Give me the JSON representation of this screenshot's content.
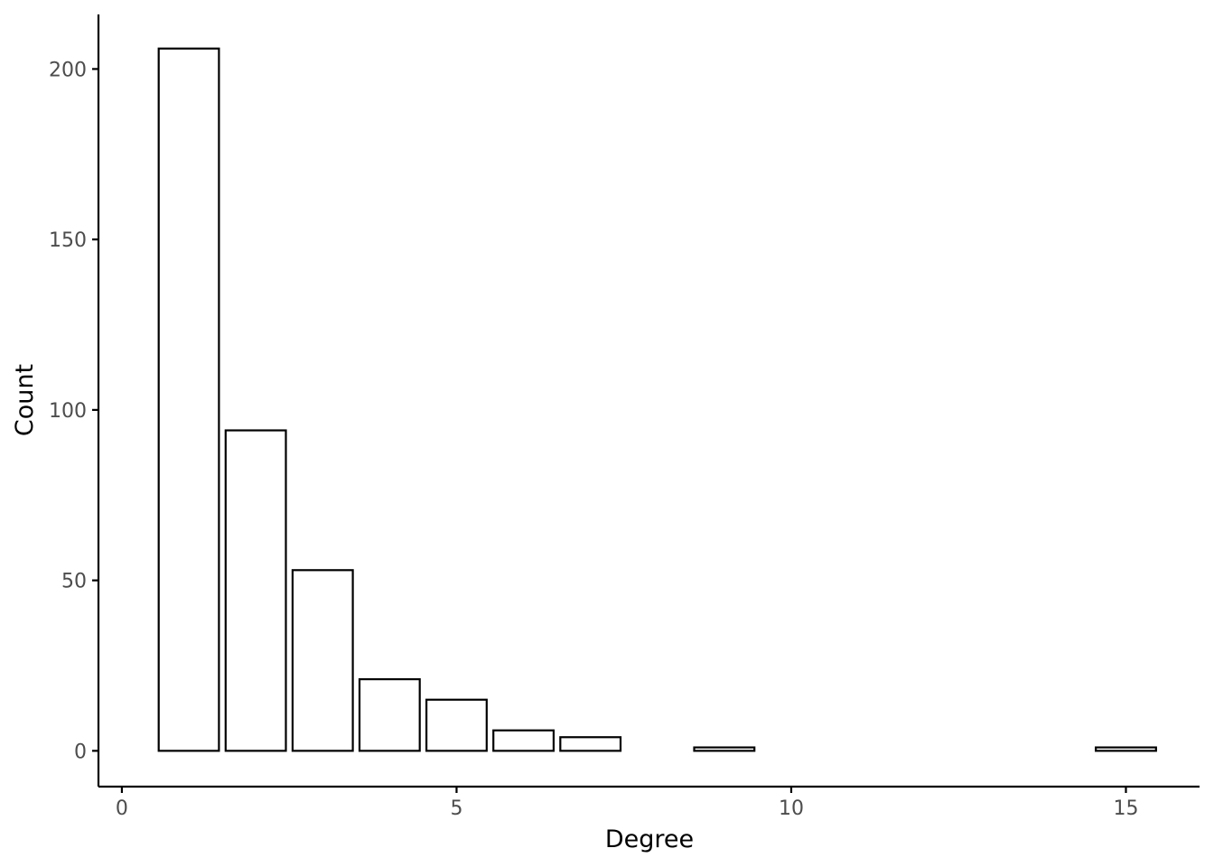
{
  "chart_data": {
    "type": "bar",
    "xlabel": "Degree",
    "ylabel": "Count",
    "x": [
      1,
      2,
      3,
      4,
      5,
      6,
      7,
      9,
      15
    ],
    "values": [
      206,
      94,
      53,
      21,
      15,
      6,
      4,
      1,
      1
    ],
    "xlim": [
      -0.35,
      16.1
    ],
    "ylim": [
      -10.5,
      216
    ],
    "x_ticks": [
      0,
      5,
      10,
      15
    ],
    "y_ticks": [
      0,
      50,
      100,
      150,
      200
    ],
    "bar_width": 0.9,
    "grid": false,
    "legend": "none",
    "colors": {
      "bar_fill": "#ffffff",
      "bar_stroke": "#000000",
      "axis": "#000000",
      "tick_text": "#4d4d4d"
    }
  }
}
